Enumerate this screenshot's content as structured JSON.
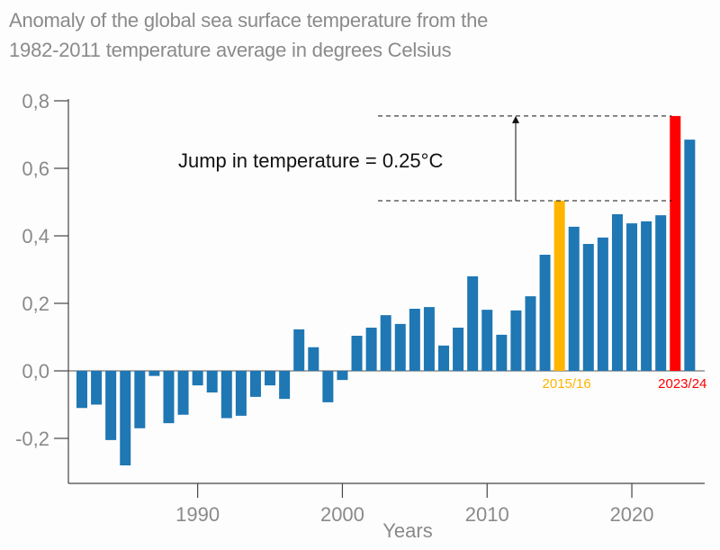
{
  "chart_data": {
    "type": "bar",
    "title": "Anomaly of the global sea surface temperature from the 1982-2011 temperature average in degrees Celsius",
    "title_lines": [
      "Anomaly of the global sea surface temperature from the",
      "1982-2011 temperature average in degrees Celsius"
    ],
    "xlabel": "Years",
    "ylabel": "",
    "ylim": [
      -0.33,
      0.8
    ],
    "yticks": [
      -0.2,
      0.0,
      0.2,
      0.4,
      0.6,
      0.8
    ],
    "ytick_labels": [
      "-0,2",
      "0,0",
      "0,2",
      "0,4",
      "0,6",
      "0,8"
    ],
    "xticks": [
      1990,
      2000,
      2010,
      2020
    ],
    "xtick_labels": [
      "1990",
      "2000",
      "2010",
      "2020"
    ],
    "grid": false,
    "x": [
      1982,
      1983,
      1984,
      1985,
      1986,
      1987,
      1988,
      1989,
      1990,
      1991,
      1992,
      1993,
      1994,
      1995,
      1996,
      1997,
      1998,
      1999,
      2000,
      2001,
      2002,
      2003,
      2004,
      2005,
      2006,
      2007,
      2008,
      2009,
      2010,
      2011,
      2012,
      2013,
      2014,
      2015,
      2016,
      2017,
      2018,
      2019,
      2020,
      2021,
      2022,
      2023,
      2024
    ],
    "values": [
      -0.11,
      -0.1,
      -0.205,
      -0.28,
      -0.17,
      -0.015,
      -0.155,
      -0.13,
      -0.043,
      -0.064,
      -0.14,
      -0.133,
      -0.077,
      -0.043,
      -0.083,
      0.123,
      0.07,
      -0.093,
      -0.027,
      0.104,
      0.128,
      0.165,
      0.139,
      0.184,
      0.189,
      0.075,
      0.128,
      0.28,
      0.181,
      0.107,
      0.179,
      0.221,
      0.344,
      0.504,
      0.427,
      0.376,
      0.395,
      0.464,
      0.437,
      0.443,
      0.461,
      0.755,
      0.685
    ],
    "bar_color": "#1f77b4",
    "highlights": [
      {
        "year": 2015,
        "label": "2015/16",
        "color": "#ffb400"
      },
      {
        "year": 2023,
        "label": "2023/24",
        "color": "#ff0000"
      }
    ],
    "annotations": [
      {
        "text": "Jump in temperature = 0.25°C",
        "from_value": 0.504,
        "to_value": 0.755
      }
    ]
  }
}
